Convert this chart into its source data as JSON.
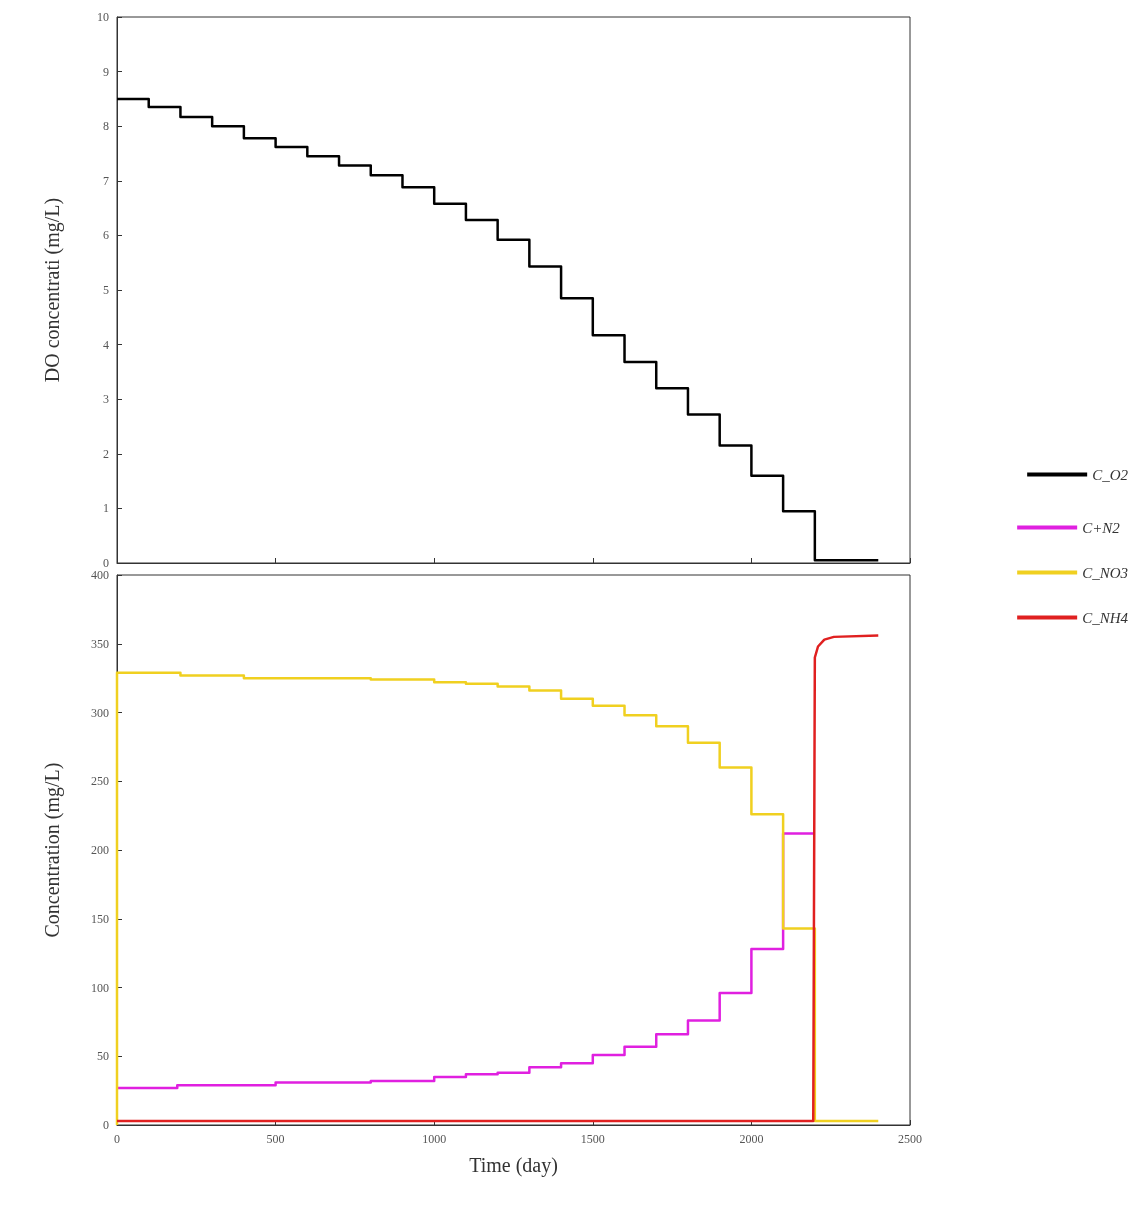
{
  "chart_data": [
    {
      "type": "step",
      "ylabel": "DO concentrati (mg/L)",
      "xlim": [
        0,
        2500
      ],
      "xticks": [
        0,
        500,
        1000,
        1500,
        2000,
        2500
      ],
      "ylim": [
        0,
        10
      ],
      "yticks": [
        0,
        1,
        2,
        3,
        4,
        5,
        6,
        7,
        8,
        9,
        10
      ],
      "tick_labels": "y",
      "grid": false,
      "legend": "right",
      "series": [
        {
          "name": "C_O2",
          "color": "#000000",
          "x": [
            0,
            100,
            200,
            300,
            400,
            500,
            600,
            700,
            800,
            900,
            1000,
            1100,
            1200,
            1300,
            1400,
            1500,
            1600,
            1700,
            1800,
            1900,
            2000,
            2100,
            2200,
            2400
          ],
          "values": [
            8.5,
            8.35,
            8.17,
            8.0,
            7.78,
            7.62,
            7.45,
            7.28,
            7.1,
            6.88,
            6.58,
            6.28,
            5.92,
            5.43,
            4.85,
            4.17,
            3.68,
            3.2,
            2.72,
            2.15,
            1.6,
            0.95,
            0.05,
            0.05
          ]
        }
      ]
    },
    {
      "type": "step",
      "xlabel": "Time (day)",
      "ylabel": "Concentration (mg/L)",
      "xlim": [
        0,
        2500
      ],
      "xticks": [
        0,
        500,
        1000,
        1500,
        2000,
        2500
      ],
      "ylim": [
        0,
        400
      ],
      "yticks": [
        0,
        50,
        100,
        150,
        200,
        250,
        300,
        350,
        400
      ],
      "grid": false,
      "legend": "right",
      "series": [
        {
          "name": "C+N2",
          "color": "#e020e0",
          "x": [
            0,
            190,
            500,
            800,
            1000,
            1100,
            1200,
            1300,
            1400,
            1500,
            1600,
            1700,
            1800,
            1900,
            2000,
            2100,
            2200
          ],
          "values": [
            27,
            29,
            31,
            32,
            35,
            37,
            38,
            42,
            45,
            51,
            57,
            66,
            76,
            96,
            128,
            212,
            212
          ]
        },
        {
          "name": "C_NO3",
          "color": "#f0d020",
          "x": [
            0,
            0,
            200,
            400,
            800,
            1000,
            1100,
            1200,
            1300,
            1400,
            1500,
            1600,
            1700,
            1800,
            1900,
            2000,
            2100,
            2200,
            2400
          ],
          "values": [
            0,
            329,
            327,
            325,
            324,
            322,
            321,
            319,
            316,
            310,
            305,
            298,
            290,
            278,
            260,
            226,
            143,
            3,
            3
          ]
        },
        {
          "name": "C_NH4",
          "color": "#e02020",
          "type": "line",
          "x": [
            0,
            2195,
            2200,
            2210,
            2230,
            2260,
            2400
          ],
          "values": [
            3,
            3,
            340,
            348,
            353,
            355,
            356
          ]
        }
      ]
    }
  ]
}
